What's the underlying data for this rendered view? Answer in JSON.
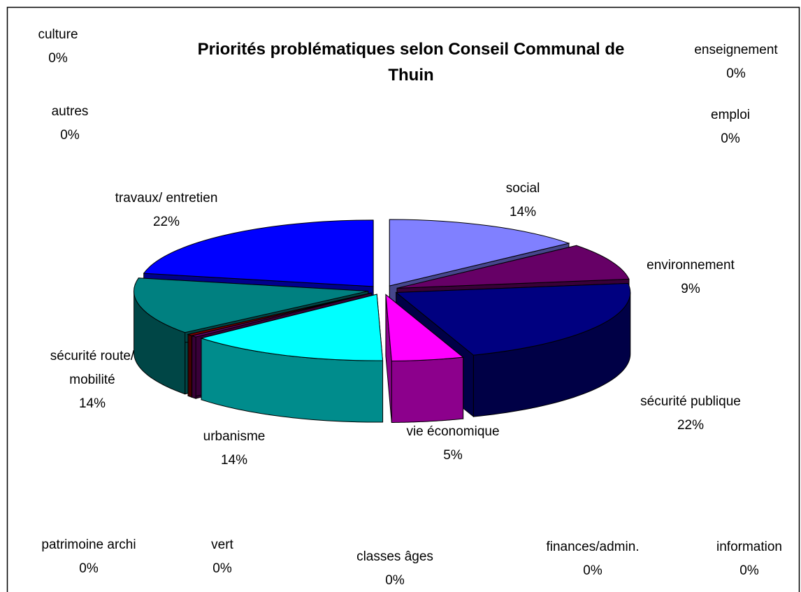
{
  "chart_data": {
    "type": "pie3d",
    "title": "Priorités problématiques selon Conseil Communal de Thuin",
    "categories": [
      "social",
      "environnement",
      "sécurité publique",
      "vie économique",
      "classes âges",
      "finances/admin.",
      "information",
      "urbanisme",
      "vert",
      "patrimoine archi",
      "sécurité route/ mobilité",
      "autres",
      "travaux/ entretien",
      "culture",
      "enseignement",
      "emploi"
    ],
    "values": [
      14,
      9,
      22,
      5,
      0,
      0,
      0,
      14,
      0.4,
      0.4,
      14,
      0,
      22,
      0,
      0,
      0
    ],
    "value_labels": [
      "14%",
      "9%",
      "22%",
      "5%",
      "0%",
      "0%",
      "0%",
      "14%",
      "0%",
      "0%",
      "14%",
      "0%",
      "22%",
      "0%",
      "0%",
      "0%"
    ],
    "colors": [
      "#8080ff",
      "#660066",
      "#000080",
      "#ff00ff",
      "#ffffff",
      "#ffffff",
      "#ffffff",
      "#00ffff",
      "#660066",
      "#800000",
      "#008080",
      "#000080",
      "#0000ff",
      "#ffffff",
      "#ffffff",
      "#ffffff"
    ]
  }
}
